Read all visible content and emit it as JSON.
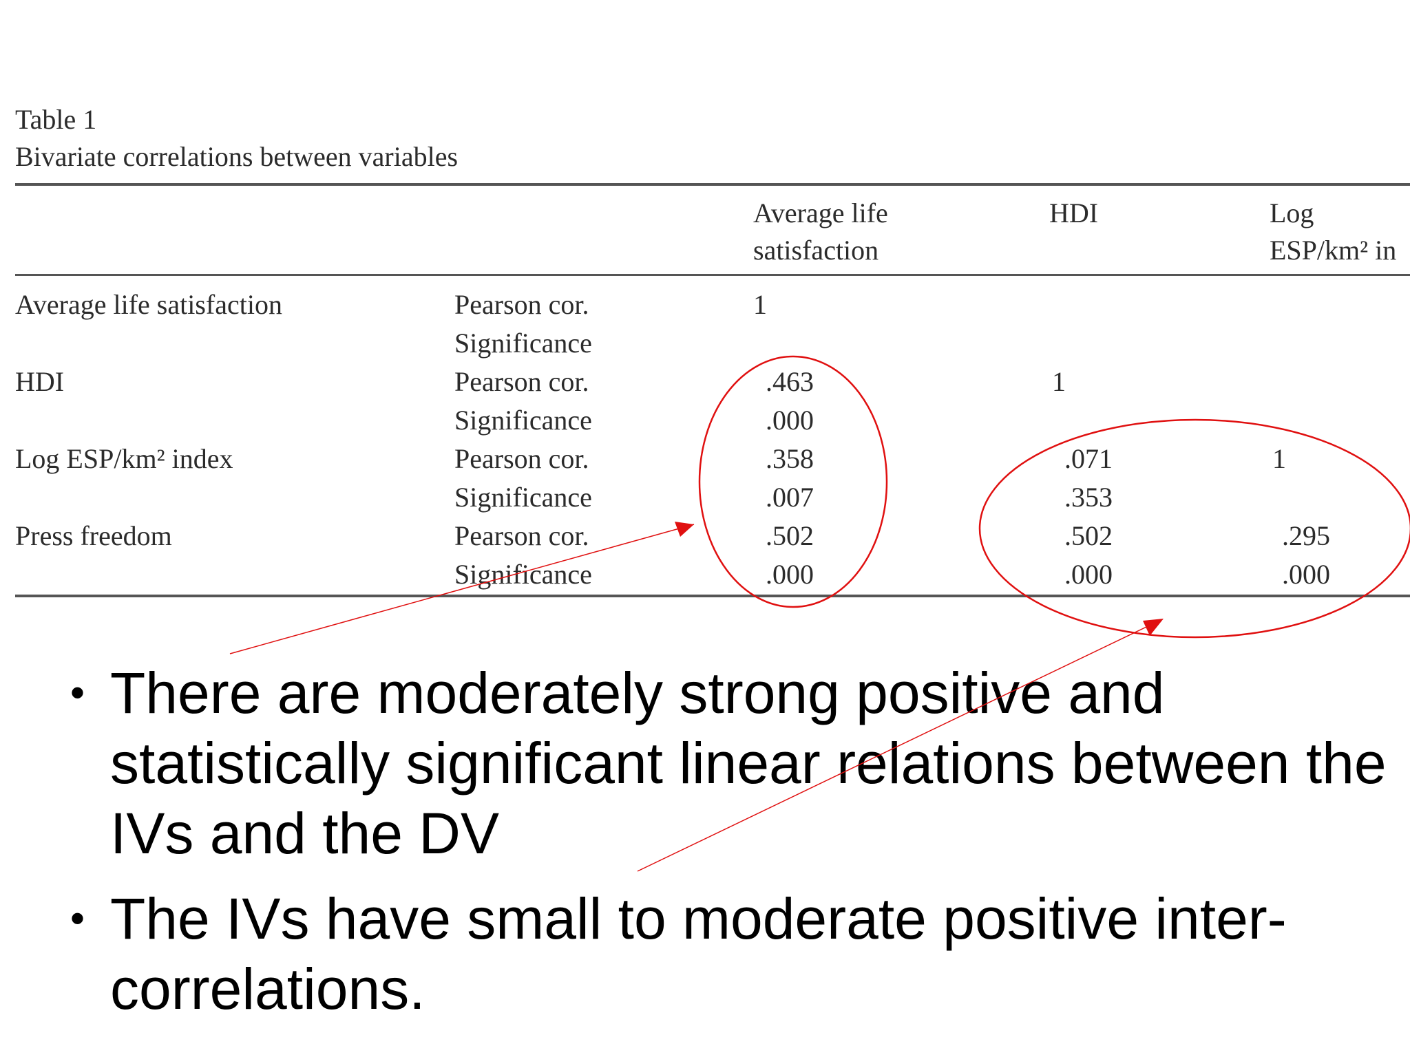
{
  "table": {
    "label": "Table 1",
    "title": "Bivariate correlations between variables",
    "column_headers": [
      {
        "line1": "Average life",
        "line2": "satisfaction"
      },
      {
        "line1": "HDI",
        "line2": ""
      },
      {
        "line1": "Log",
        "line2": "ESP/km² in"
      }
    ],
    "rows": [
      {
        "variable": "Average life satisfaction",
        "stat": "Pearson cor.",
        "values": [
          "1",
          "",
          ""
        ]
      },
      {
        "variable": "",
        "stat": "Significance",
        "values": [
          "",
          "",
          ""
        ]
      },
      {
        "variable": "HDI",
        "stat": "Pearson cor.",
        "values": [
          ".463",
          "1",
          ""
        ]
      },
      {
        "variable": "",
        "stat": "Significance",
        "values": [
          ".000",
          "",
          ""
        ]
      },
      {
        "variable": "Log ESP/km² index",
        "stat": "Pearson cor.",
        "values": [
          ".358",
          ".071",
          "1"
        ]
      },
      {
        "variable": "",
        "stat": "Significance",
        "values": [
          ".007",
          ".353",
          ""
        ]
      },
      {
        "variable": "Press freedom",
        "stat": "Pearson cor.",
        "values": [
          ".502",
          ".502",
          ".295"
        ]
      },
      {
        "variable": "",
        "stat": "Significance",
        "values": [
          ".000",
          ".000",
          ".000"
        ]
      }
    ]
  },
  "annotation": {
    "color": "#e01010"
  },
  "bullets": [
    {
      "text": "There are moderately strong positive and statistically significant linear relations between the IVs and the DV"
    },
    {
      "text": "The IVs have small to moderate positive inter-correlations."
    }
  ]
}
